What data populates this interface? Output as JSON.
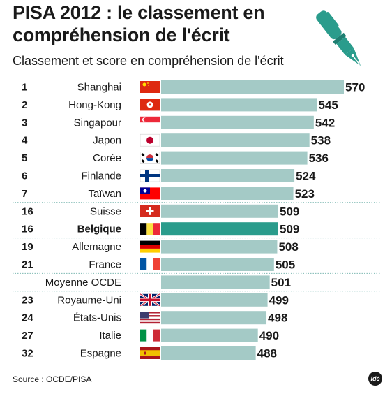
{
  "header": {
    "title": "PISA 2012 : le classement en compréhension de l'écrit",
    "subtitle": "Classement et score en compréhension de l'écrit"
  },
  "colors": {
    "bar": "#a4cac6",
    "bar_highlight": "#2a9c8c",
    "text": "#1a1a1a",
    "separator": "#7fb9b3",
    "pen": "#2a9c8c"
  },
  "chart_data": {
    "type": "bar",
    "orientation": "horizontal",
    "title": "PISA 2012 : le classement en compréhension de l'écrit",
    "subtitle": "Classement et score en compréhension de l'écrit",
    "categories": [
      "Shanghai",
      "Hong-Kong",
      "Singapour",
      "Japon",
      "Corée",
      "Finlande",
      "Taïwan",
      "Suisse",
      "Belgique",
      "Allemagne",
      "France",
      "Moyenne OCDE",
      "Royaume-Uni",
      "États-Unis",
      "Italie",
      "Espagne"
    ],
    "ranks": [
      "1",
      "2",
      "3",
      "4",
      "5",
      "6",
      "7",
      "16",
      "16",
      "19",
      "21",
      "",
      "23",
      "24",
      "27",
      "32"
    ],
    "values": [
      570,
      545,
      542,
      538,
      536,
      524,
      523,
      509,
      509,
      508,
      505,
      501,
      499,
      498,
      490,
      488
    ],
    "flags": [
      "china-flag",
      "hong-kong-flag",
      "singapore-flag",
      "japan-flag",
      "south-korea-flag",
      "finland-flag",
      "taiwan-flag",
      "switzerland-flag",
      "belgium-flag",
      "germany-flag",
      "france-flag",
      "",
      "uk-flag",
      "usa-flag",
      "italy-flag",
      "spain-flag"
    ],
    "highlight": "Belgique",
    "separators_after": [
      "Taïwan",
      "Belgique",
      "France",
      "Moyenne OCDE"
    ]
  },
  "footer": {
    "source": "Source : OCDE/PISA",
    "logo": "idé"
  }
}
